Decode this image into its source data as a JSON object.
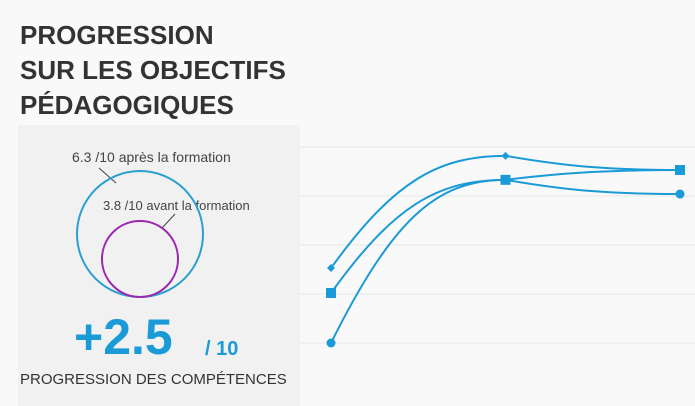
{
  "header": {
    "title_lines": [
      "PROGRESSION",
      "SUR LES OBJECTIFS",
      "PÉDAGOGIQUES"
    ]
  },
  "score": {
    "after": {
      "value": 6.3,
      "label": "6.3 /10 après la formation",
      "color": "#2a9fd0"
    },
    "before": {
      "value": 3.8,
      "label": "3.8 /10 avant la formation",
      "color": "#9b27b0"
    },
    "gain": "+2.5",
    "gain_unit": "/ 10",
    "caption": "PROGRESSION DES COMPÉTENCES"
  },
  "chart_data": {
    "type": "line",
    "categories": [
      null,
      null,
      null
    ],
    "ylim": [
      0,
      4
    ],
    "yticks": [
      0,
      1,
      2,
      3,
      4
    ],
    "grid": true,
    "series": [
      {
        "color": "#1a9ad6",
        "marker": "diamond",
        "values": [
          1.53,
          3.82,
          3.53
        ]
      },
      {
        "color": "#1a9ad6",
        "marker": "square",
        "values": [
          1.02,
          3.33,
          3.53
        ]
      },
      {
        "color": "#1a9ad6",
        "marker": "circle",
        "values": [
          0,
          3.33,
          3.04
        ]
      }
    ]
  }
}
